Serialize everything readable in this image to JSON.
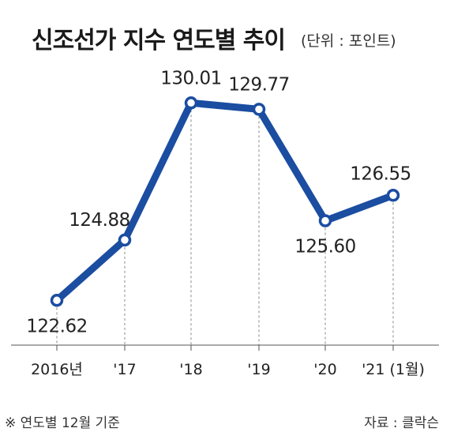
{
  "title": "신조선가 지수 연도별 추이",
  "unit": "(단위 : 포인트)",
  "footnote": "※ 연도별 12월 기준",
  "source": "자료 : 클락슨",
  "colors": {
    "line": "#1b4da1",
    "marker_fill": "#ffffff",
    "dashed_guide": "#8a8a8a",
    "axis": "#555555",
    "text": "#222222"
  },
  "chart_data": {
    "type": "line",
    "title": "신조선가 지수 연도별 추이",
    "unit": "(단위 : 포인트)",
    "categories": [
      "2016년",
      "'17",
      "'18",
      "'19",
      "'20",
      "'21 (1월)"
    ],
    "values": [
      122.62,
      124.88,
      130.01,
      129.77,
      125.6,
      126.55
    ],
    "data_labels": [
      "122.62",
      "124.88",
      "130.01",
      "129.77",
      "125.60",
      "126.55"
    ],
    "ylim": [
      121.3,
      131.2
    ],
    "grid": false,
    "legend": "none",
    "markers": "hollow-circle",
    "guides": "dashed-vertical"
  }
}
